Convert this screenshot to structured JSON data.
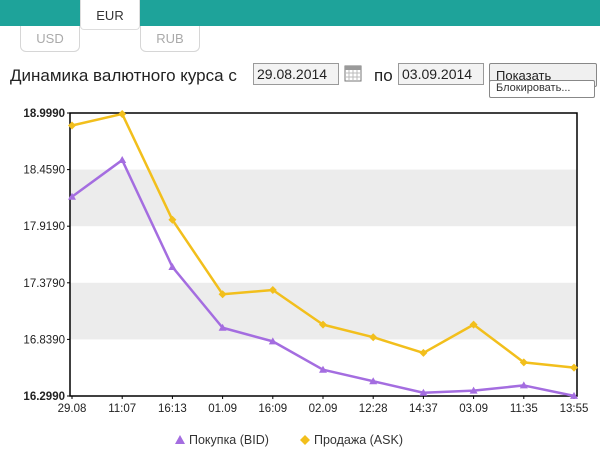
{
  "tabs": {
    "active": {
      "label": "EUR"
    },
    "usd": {
      "label": "USD"
    },
    "rub": {
      "label": "RUB"
    }
  },
  "controls": {
    "label_prefix": "Динамика валютного курса с",
    "date_from": "29.08.2014",
    "label_to": "по",
    "date_to": "03.09.2014",
    "show_button": "Показать",
    "tooltip": "Блокировать..."
  },
  "colors": {
    "accent": "#1ea39a",
    "bid": "#a46de0",
    "ask": "#f2bf1c",
    "band": "#ececec"
  },
  "chart_data": {
    "type": "line",
    "categories": [
      "29.08",
      "11:07",
      "16:13",
      "01.09",
      "16:09",
      "02.09",
      "12:28",
      "14:37",
      "03.09",
      "11:35",
      "13:55"
    ],
    "y_ticks": [
      "16.2990",
      "16.8390",
      "17.3790",
      "17.9190",
      "18.4590",
      "18.9990"
    ],
    "ylim": [
      16.299,
      18.999
    ],
    "series": [
      {
        "name": "Покупка (BID)",
        "marker": "triangle",
        "color": "#a46de0",
        "values": [
          18.2,
          18.55,
          17.53,
          16.95,
          16.82,
          16.55,
          16.44,
          16.33,
          16.35,
          16.4,
          16.3
        ]
      },
      {
        "name": "Продажа (ASK)",
        "marker": "diamond",
        "color": "#f2bf1c",
        "values": [
          18.88,
          18.99,
          17.98,
          17.27,
          17.31,
          16.98,
          16.86,
          16.71,
          16.98,
          16.62,
          16.57
        ]
      }
    ],
    "grid": false,
    "legend_position": "bottom"
  }
}
